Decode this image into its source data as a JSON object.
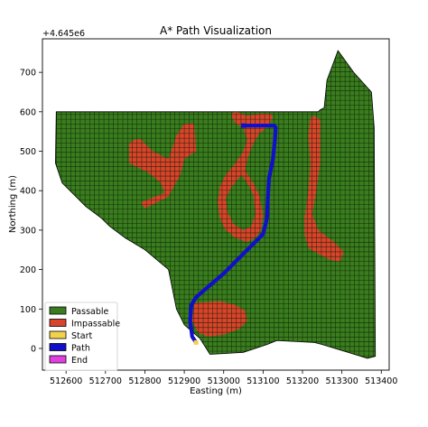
{
  "chart_data": {
    "type": "heatmap",
    "title": "A* Path Visualization",
    "xlabel": "Easting (m)",
    "ylabel": "Northing (m)",
    "y_offset_label": "+4.645e6",
    "xlim": [
      512540,
      513420
    ],
    "ylim": [
      -55,
      785
    ],
    "x_ticks": [
      512600,
      512700,
      512800,
      512900,
      513000,
      513100,
      513200,
      513300,
      513400
    ],
    "y_ticks": [
      0,
      100,
      200,
      300,
      400,
      500,
      600,
      700
    ],
    "cell_size": 12,
    "legend": {
      "placement": "lower left",
      "entries": [
        {
          "label": "Passable",
          "color": "#3a7d1e"
        },
        {
          "label": "Impassable",
          "color": "#d9442a"
        },
        {
          "label": "Start",
          "color": "#f2d24b"
        },
        {
          "label": "Path",
          "color": "#1010c8"
        },
        {
          "label": "End",
          "color": "#e040e0"
        }
      ]
    },
    "passable_region": [
      [
        512575,
        600
      ],
      [
        513240,
        600
      ],
      [
        513245,
        605
      ],
      [
        513255,
        610
      ],
      [
        513262,
        680
      ],
      [
        513290,
        755
      ],
      [
        513330,
        700
      ],
      [
        513375,
        650
      ],
      [
        513382,
        560
      ],
      [
        513385,
        -20
      ],
      [
        513365,
        -25
      ],
      [
        513250,
        10
      ],
      [
        513230,
        15
      ],
      [
        513135,
        20
      ],
      [
        513110,
        10
      ],
      [
        513050,
        -10
      ],
      [
        512965,
        -15
      ],
      [
        512940,
        25
      ],
      [
        512900,
        60
      ],
      [
        512880,
        100
      ],
      [
        512860,
        200
      ],
      [
        512800,
        250
      ],
      [
        512750,
        280
      ],
      [
        512710,
        310
      ],
      [
        512690,
        330
      ],
      [
        512650,
        360
      ],
      [
        512590,
        420
      ],
      [
        512573,
        470
      ],
      [
        512575,
        600
      ]
    ],
    "impassable_regions": [
      {
        "name": "left-blob",
        "polygon": [
          [
            512760,
            520
          ],
          [
            512760,
            470
          ],
          [
            512810,
            445
          ],
          [
            512840,
            420
          ],
          [
            512850,
            395
          ],
          [
            512790,
            370
          ],
          [
            512800,
            355
          ],
          [
            512860,
            385
          ],
          [
            512890,
            440
          ],
          [
            512900,
            480
          ],
          [
            512930,
            500
          ],
          [
            512925,
            570
          ],
          [
            512900,
            570
          ],
          [
            512880,
            540
          ],
          [
            512860,
            480
          ],
          [
            512820,
            500
          ],
          [
            512790,
            530
          ],
          [
            512775,
            530
          ]
        ]
      },
      {
        "name": "center-loop",
        "polygon": [
          [
            513020,
            590
          ],
          [
            513030,
            570
          ],
          [
            513050,
            560
          ],
          [
            513060,
            530
          ],
          [
            513050,
            500
          ],
          [
            513030,
            470
          ],
          [
            513005,
            440
          ],
          [
            512990,
            410
          ],
          [
            512985,
            370
          ],
          [
            512990,
            330
          ],
          [
            513005,
            300
          ],
          [
            513030,
            280
          ],
          [
            513060,
            270
          ],
          [
            513080,
            280
          ],
          [
            513095,
            300
          ],
          [
            513100,
            340
          ],
          [
            513090,
            390
          ],
          [
            513075,
            420
          ],
          [
            513055,
            450
          ],
          [
            513060,
            480
          ],
          [
            513075,
            520
          ],
          [
            513090,
            545
          ],
          [
            513110,
            560
          ],
          [
            513125,
            585
          ],
          [
            513120,
            595
          ],
          [
            513090,
            595
          ],
          [
            513060,
            590
          ],
          [
            513045,
            595
          ],
          [
            513030,
            600
          ],
          [
            513020,
            595
          ]
        ]
      },
      {
        "name": "center-loop-hole",
        "polygon": [
          [
            513020,
            410
          ],
          [
            513045,
            440
          ],
          [
            513060,
            420
          ],
          [
            513075,
            390
          ],
          [
            513080,
            340
          ],
          [
            513070,
            310
          ],
          [
            513050,
            300
          ],
          [
            513025,
            315
          ],
          [
            513010,
            345
          ],
          [
            513005,
            380
          ]
        ]
      },
      {
        "name": "right-strip",
        "polygon": [
          [
            513230,
            590
          ],
          [
            513245,
            580
          ],
          [
            513245,
            470
          ],
          [
            513235,
            400
          ],
          [
            513225,
            340
          ],
          [
            513240,
            300
          ],
          [
            513280,
            270
          ],
          [
            513305,
            245
          ],
          [
            513295,
            220
          ],
          [
            513270,
            225
          ],
          [
            513240,
            240
          ],
          [
            513215,
            255
          ],
          [
            513205,
            290
          ],
          [
            513205,
            330
          ],
          [
            513215,
            400
          ],
          [
            513220,
            470
          ],
          [
            513215,
            540
          ],
          [
            513220,
            585
          ]
        ]
      },
      {
        "name": "bottom-blob",
        "polygon": [
          [
            512925,
            115
          ],
          [
            512990,
            120
          ],
          [
            513030,
            110
          ],
          [
            513055,
            95
          ],
          [
            513060,
            70
          ],
          [
            513040,
            50
          ],
          [
            513000,
            35
          ],
          [
            512960,
            30
          ],
          [
            512935,
            40
          ],
          [
            512920,
            70
          ]
        ]
      }
    ],
    "path": [
      [
        512930,
        15
      ],
      [
        512920,
        30
      ],
      [
        512915,
        70
      ],
      [
        512918,
        110
      ],
      [
        512930,
        130
      ],
      [
        513000,
        190
      ],
      [
        513050,
        240
      ],
      [
        513100,
        290
      ],
      [
        513110,
        330
      ],
      [
        513112,
        380
      ],
      [
        513115,
        430
      ],
      [
        513125,
        480
      ],
      [
        513130,
        530
      ],
      [
        513132,
        560
      ],
      [
        513128,
        565
      ],
      [
        513070,
        565
      ],
      [
        513050,
        565
      ]
    ],
    "start": [
      512930,
      15
    ],
    "end": [
      513050,
      565
    ]
  }
}
